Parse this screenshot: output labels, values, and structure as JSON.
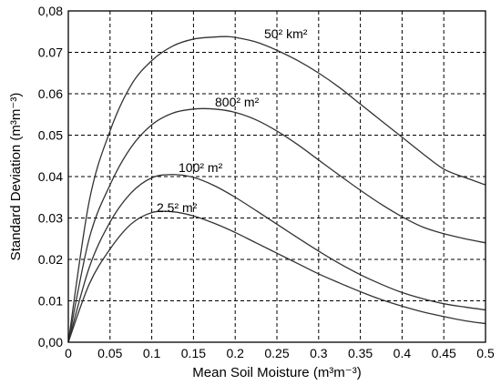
{
  "chart_data": {
    "type": "line",
    "title": "",
    "xlabel": "Mean Soil Moisture (m³m⁻³)",
    "ylabel": "Standard Deviation (m³m⁻³)",
    "xlim": [
      0,
      0.5
    ],
    "ylim": [
      0,
      0.08
    ],
    "grid": true,
    "legend": "none",
    "x_ticks": [
      "0",
      "0.05",
      "0.1",
      "0.15",
      "0.2",
      "0.25",
      "0.3",
      "0.35",
      "0.4",
      "0.45",
      "0.5"
    ],
    "y_ticks": [
      "0,00",
      "0.01",
      "0.02",
      "0.03",
      "0.04",
      "0.05",
      "0.06",
      "0.07",
      "0,08"
    ],
    "series": [
      {
        "name": "50² km²",
        "x": [
          0,
          0.025,
          0.05,
          0.075,
          0.1,
          0.125,
          0.15,
          0.175,
          0.19,
          0.2,
          0.225,
          0.25,
          0.275,
          0.3,
          0.325,
          0.35,
          0.375,
          0.4,
          0.425,
          0.45,
          0.475,
          0.5
        ],
        "y": [
          0,
          0.034,
          0.051,
          0.062,
          0.068,
          0.0715,
          0.0732,
          0.0737,
          0.0738,
          0.0736,
          0.0725,
          0.0705,
          0.068,
          0.065,
          0.0615,
          0.0575,
          0.0535,
          0.0495,
          0.0455,
          0.0418,
          0.0398,
          0.038
        ]
      },
      {
        "name": "800² m²",
        "x": [
          0,
          0.025,
          0.05,
          0.075,
          0.1,
          0.125,
          0.15,
          0.175,
          0.2,
          0.225,
          0.25,
          0.275,
          0.3,
          0.325,
          0.35,
          0.375,
          0.4,
          0.425,
          0.45,
          0.475,
          0.5
        ],
        "y": [
          0,
          0.025,
          0.038,
          0.047,
          0.0525,
          0.0553,
          0.0563,
          0.0563,
          0.0555,
          0.0537,
          0.051,
          0.0477,
          0.044,
          0.0403,
          0.0367,
          0.0333,
          0.0303,
          0.0278,
          0.0262,
          0.025,
          0.024
        ]
      },
      {
        "name": "100² m²",
        "x": [
          0,
          0.025,
          0.05,
          0.075,
          0.1,
          0.125,
          0.15,
          0.175,
          0.2,
          0.225,
          0.25,
          0.275,
          0.3,
          0.325,
          0.35,
          0.375,
          0.4,
          0.425,
          0.45,
          0.475,
          0.5
        ],
        "y": [
          0,
          0.018,
          0.029,
          0.036,
          0.0397,
          0.0405,
          0.0398,
          0.0378,
          0.035,
          0.0318,
          0.0285,
          0.0252,
          0.022,
          0.019,
          0.0163,
          0.014,
          0.012,
          0.0105,
          0.0093,
          0.0085,
          0.0078
        ]
      },
      {
        "name": "2.5² m²",
        "x": [
          0,
          0.025,
          0.05,
          0.075,
          0.1,
          0.125,
          0.15,
          0.175,
          0.2,
          0.225,
          0.25,
          0.275,
          0.3,
          0.325,
          0.35,
          0.375,
          0.4,
          0.425,
          0.45,
          0.475,
          0.5
        ],
        "y": [
          0,
          0.014,
          0.0225,
          0.0285,
          0.0313,
          0.0315,
          0.0305,
          0.0287,
          0.0265,
          0.024,
          0.0215,
          0.019,
          0.0165,
          0.0143,
          0.0122,
          0.0103,
          0.0087,
          0.0073,
          0.0062,
          0.0052,
          0.0045
        ]
      }
    ]
  }
}
